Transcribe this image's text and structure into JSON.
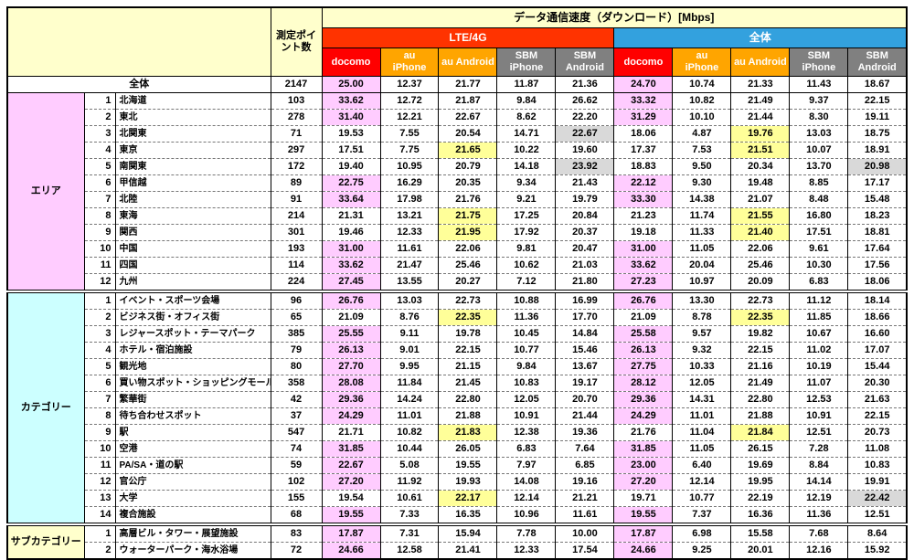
{
  "title": "データ通信速度（ダウンロード）[Mbps]",
  "colors": {
    "header_bg": "#ffffcc",
    "grid": "#000000"
  },
  "header": {
    "points_label": "測定ポイント数",
    "groups": [
      {
        "label": "LTE/4G",
        "color": "#ff3300"
      },
      {
        "label": "全体",
        "color": "#33a1de"
      }
    ],
    "carriers": [
      {
        "label": "docomo",
        "color": "#ff0000"
      },
      {
        "label": "au\niPhone",
        "color": "#ffa500"
      },
      {
        "label": "au Android",
        "color": "#ffa500"
      },
      {
        "label": "SBM\niPhone",
        "color": "#808080"
      },
      {
        "label": "SBM\nAndroid",
        "color": "#808080"
      }
    ]
  },
  "highlight_colors": {
    "docomo": "#ffccff",
    "au_android": "#ffff99",
    "sbm_android": "#d9d9d9"
  },
  "sections": [
    {
      "label": "",
      "color": "#ffffff",
      "rows": [
        {
          "num": "",
          "name": "全体",
          "points": "2147",
          "lte": [
            "25.00",
            "12.37",
            "21.77",
            "11.87",
            "21.36"
          ],
          "all": [
            "24.70",
            "10.74",
            "21.33",
            "11.43",
            "18.67"
          ],
          "hl_lte": 0,
          "hl_all": 0
        }
      ]
    },
    {
      "label": "エリア",
      "color": "#ffccff",
      "rows": [
        {
          "num": "1",
          "name": "北海道",
          "points": "103",
          "lte": [
            "33.62",
            "12.72",
            "21.87",
            "9.84",
            "26.62"
          ],
          "all": [
            "33.32",
            "10.82",
            "21.49",
            "9.37",
            "22.15"
          ],
          "hl_lte": 0,
          "hl_all": 0
        },
        {
          "num": "2",
          "name": "東北",
          "points": "278",
          "lte": [
            "31.40",
            "12.21",
            "22.67",
            "8.62",
            "22.20"
          ],
          "all": [
            "31.29",
            "10.10",
            "21.44",
            "8.30",
            "19.11"
          ],
          "hl_lte": 0,
          "hl_all": 0
        },
        {
          "num": "3",
          "name": "北関東",
          "points": "71",
          "lte": [
            "19.53",
            "7.55",
            "20.54",
            "14.71",
            "22.67"
          ],
          "all": [
            "18.06",
            "4.87",
            "19.76",
            "13.03",
            "18.75"
          ],
          "hl_lte": 4,
          "hl_all": 2
        },
        {
          "num": "4",
          "name": "東京",
          "points": "297",
          "lte": [
            "17.51",
            "7.75",
            "21.65",
            "10.22",
            "19.60"
          ],
          "all": [
            "17.37",
            "7.53",
            "21.51",
            "10.07",
            "18.91"
          ],
          "hl_lte": 2,
          "hl_all": 2
        },
        {
          "num": "5",
          "name": "南関東",
          "points": "172",
          "lte": [
            "19.40",
            "10.95",
            "20.79",
            "14.18",
            "23.92"
          ],
          "all": [
            "18.83",
            "9.50",
            "20.34",
            "13.70",
            "20.98"
          ],
          "hl_lte": 4,
          "hl_all": 4
        },
        {
          "num": "6",
          "name": "甲信越",
          "points": "89",
          "lte": [
            "22.75",
            "16.29",
            "20.35",
            "9.34",
            "21.43"
          ],
          "all": [
            "22.12",
            "9.30",
            "19.48",
            "8.85",
            "17.17"
          ],
          "hl_lte": 0,
          "hl_all": 0
        },
        {
          "num": "7",
          "name": "北陸",
          "points": "91",
          "lte": [
            "33.64",
            "17.98",
            "21.76",
            "9.21",
            "19.79"
          ],
          "all": [
            "33.30",
            "14.38",
            "21.07",
            "8.48",
            "15.48"
          ],
          "hl_lte": 0,
          "hl_all": 0
        },
        {
          "num": "8",
          "name": "東海",
          "points": "214",
          "lte": [
            "21.31",
            "13.21",
            "21.75",
            "17.25",
            "20.84"
          ],
          "all": [
            "21.23",
            "11.74",
            "21.55",
            "16.80",
            "18.23"
          ],
          "hl_lte": 2,
          "hl_all": 2
        },
        {
          "num": "9",
          "name": "関西",
          "points": "301",
          "lte": [
            "19.46",
            "12.33",
            "21.95",
            "17.92",
            "20.37"
          ],
          "all": [
            "19.18",
            "11.33",
            "21.40",
            "17.51",
            "18.81"
          ],
          "hl_lte": 2,
          "hl_all": 2
        },
        {
          "num": "10",
          "name": "中国",
          "points": "193",
          "lte": [
            "31.00",
            "11.61",
            "22.06",
            "9.81",
            "20.47"
          ],
          "all": [
            "31.00",
            "11.05",
            "22.06",
            "9.61",
            "17.64"
          ],
          "hl_lte": 0,
          "hl_all": 0
        },
        {
          "num": "11",
          "name": "四国",
          "points": "114",
          "lte": [
            "33.62",
            "21.47",
            "25.46",
            "10.62",
            "21.03"
          ],
          "all": [
            "33.62",
            "20.04",
            "25.46",
            "10.30",
            "17.56"
          ],
          "hl_lte": 0,
          "hl_all": 0
        },
        {
          "num": "12",
          "name": "九州",
          "points": "224",
          "lte": [
            "27.45",
            "13.55",
            "20.27",
            "7.12",
            "21.80"
          ],
          "all": [
            "27.23",
            "10.97",
            "20.09",
            "6.83",
            "18.06"
          ],
          "hl_lte": 0,
          "hl_all": 0
        }
      ]
    },
    {
      "label": "カテゴリー",
      "color": "#ccffff",
      "rows": [
        {
          "num": "1",
          "name": "イベント・スポーツ会場",
          "points": "96",
          "lte": [
            "26.76",
            "13.03",
            "22.73",
            "10.88",
            "16.99"
          ],
          "all": [
            "26.76",
            "13.30",
            "22.73",
            "11.12",
            "18.14"
          ],
          "hl_lte": 0,
          "hl_all": 0
        },
        {
          "num": "2",
          "name": "ビジネス街・オフィス街",
          "points": "65",
          "lte": [
            "21.09",
            "8.76",
            "22.35",
            "11.36",
            "17.70"
          ],
          "all": [
            "21.09",
            "8.78",
            "22.35",
            "11.85",
            "18.66"
          ],
          "hl_lte": 2,
          "hl_all": 2
        },
        {
          "num": "3",
          "name": "レジャースポット・テーマパーク",
          "points": "385",
          "lte": [
            "25.55",
            "9.11",
            "19.78",
            "10.45",
            "14.84"
          ],
          "all": [
            "25.58",
            "9.57",
            "19.82",
            "10.67",
            "16.60"
          ],
          "hl_lte": 0,
          "hl_all": 0
        },
        {
          "num": "4",
          "name": "ホテル・宿泊施設",
          "points": "79",
          "lte": [
            "26.13",
            "9.01",
            "22.15",
            "10.77",
            "15.46"
          ],
          "all": [
            "26.13",
            "9.32",
            "22.15",
            "11.02",
            "17.07"
          ],
          "hl_lte": 0,
          "hl_all": 0
        },
        {
          "num": "5",
          "name": "観光地",
          "points": "80",
          "lte": [
            "27.70",
            "9.95",
            "21.15",
            "9.84",
            "13.67"
          ],
          "all": [
            "27.75",
            "10.33",
            "21.16",
            "10.19",
            "15.44"
          ],
          "hl_lte": 0,
          "hl_all": 0
        },
        {
          "num": "6",
          "name": "買い物スポット・ショッピングモール",
          "points": "358",
          "lte": [
            "28.08",
            "11.84",
            "21.45",
            "10.83",
            "19.17"
          ],
          "all": [
            "28.12",
            "12.05",
            "21.49",
            "11.07",
            "20.30"
          ],
          "hl_lte": 0,
          "hl_all": 0
        },
        {
          "num": "7",
          "name": "繁華街",
          "points": "42",
          "lte": [
            "29.36",
            "14.24",
            "22.80",
            "12.05",
            "20.70"
          ],
          "all": [
            "29.36",
            "14.31",
            "22.80",
            "12.53",
            "21.63"
          ],
          "hl_lte": 0,
          "hl_all": 0
        },
        {
          "num": "8",
          "name": "待ち合わせスポット",
          "points": "37",
          "lte": [
            "24.29",
            "11.01",
            "21.88",
            "10.91",
            "21.44"
          ],
          "all": [
            "24.29",
            "11.01",
            "21.88",
            "10.91",
            "22.15"
          ],
          "hl_lte": 0,
          "hl_all": 0
        },
        {
          "num": "9",
          "name": "駅",
          "points": "547",
          "lte": [
            "21.71",
            "10.82",
            "21.83",
            "12.38",
            "19.36"
          ],
          "all": [
            "21.76",
            "11.04",
            "21.84",
            "12.51",
            "20.73"
          ],
          "hl_lte": 2,
          "hl_all": 2
        },
        {
          "num": "10",
          "name": "空港",
          "points": "74",
          "lte": [
            "31.85",
            "10.44",
            "26.05",
            "6.83",
            "7.64"
          ],
          "all": [
            "31.85",
            "11.05",
            "26.15",
            "7.28",
            "11.08"
          ],
          "hl_lte": 0,
          "hl_all": 0
        },
        {
          "num": "11",
          "name": "PA/SA・道の駅",
          "points": "59",
          "lte": [
            "22.67",
            "5.08",
            "19.55",
            "7.97",
            "6.85"
          ],
          "all": [
            "23.00",
            "6.40",
            "19.69",
            "8.84",
            "10.83"
          ],
          "hl_lte": 0,
          "hl_all": 0
        },
        {
          "num": "12",
          "name": "官公庁",
          "points": "102",
          "lte": [
            "27.20",
            "11.92",
            "19.93",
            "14.08",
            "19.16"
          ],
          "all": [
            "27.20",
            "12.14",
            "19.95",
            "14.14",
            "19.91"
          ],
          "hl_lte": 0,
          "hl_all": 0
        },
        {
          "num": "13",
          "name": "大学",
          "points": "155",
          "lte": [
            "19.54",
            "10.61",
            "22.17",
            "12.14",
            "21.21"
          ],
          "all": [
            "19.71",
            "10.77",
            "22.19",
            "12.19",
            "22.42"
          ],
          "hl_lte": 2,
          "hl_all": 4
        },
        {
          "num": "14",
          "name": "複合施設",
          "points": "68",
          "lte": [
            "19.55",
            "7.33",
            "16.35",
            "10.96",
            "11.61"
          ],
          "all": [
            "19.55",
            "7.37",
            "16.36",
            "11.36",
            "12.51"
          ],
          "hl_lte": 0,
          "hl_all": 0
        }
      ]
    },
    {
      "label": "サブカテゴリー",
      "color": "#ffffcc",
      "rows": [
        {
          "num": "1",
          "name": "高層ビル・タワー・展望施設",
          "points": "83",
          "lte": [
            "17.87",
            "7.31",
            "15.94",
            "7.78",
            "10.00"
          ],
          "all": [
            "17.87",
            "6.98",
            "15.58",
            "7.68",
            "8.64"
          ],
          "hl_lte": 0,
          "hl_all": 0
        },
        {
          "num": "2",
          "name": "ウォーターパーク・海水浴場",
          "points": "72",
          "lte": [
            "24.66",
            "12.58",
            "21.41",
            "12.33",
            "17.54"
          ],
          "all": [
            "24.66",
            "9.25",
            "20.01",
            "12.16",
            "15.92"
          ],
          "hl_lte": 0,
          "hl_all": 0
        }
      ]
    }
  ]
}
